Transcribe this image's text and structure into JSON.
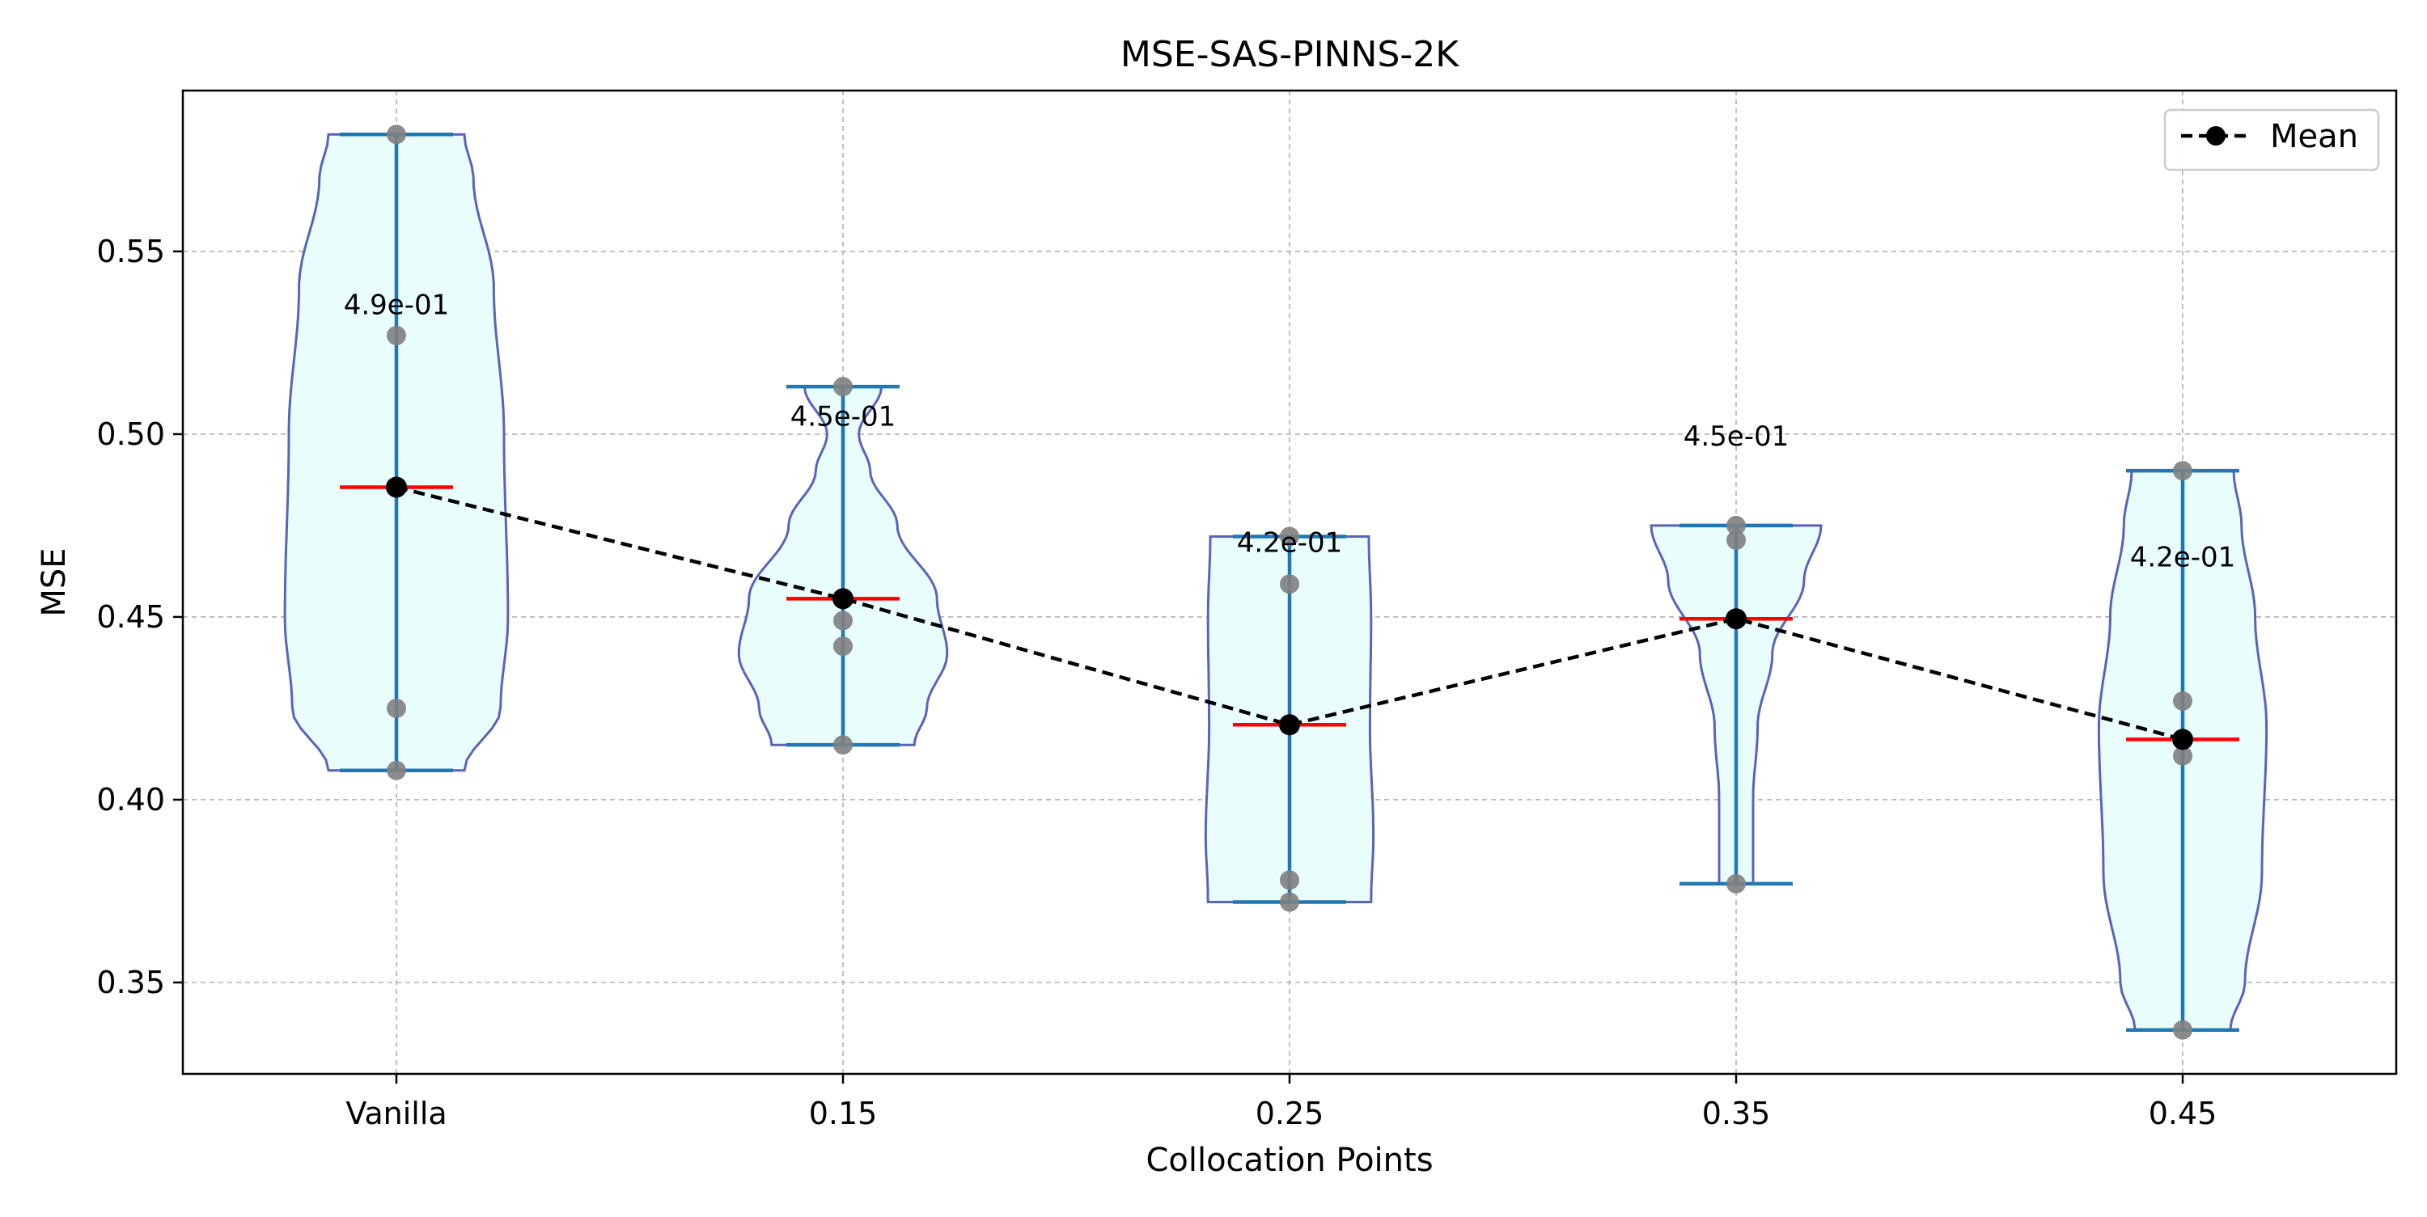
{
  "chart_data": {
    "type": "violin",
    "title": "MSE-SAS-PINNS-2K",
    "xlabel": "Collocation Points",
    "ylabel": "MSE",
    "categories": [
      "Vanilla",
      "0.15",
      "0.25",
      "0.35",
      "0.45"
    ],
    "ylim": [
      0.325,
      0.594
    ],
    "yticks": [
      0.35,
      0.4,
      0.45,
      0.5,
      0.55
    ],
    "ytick_labels": [
      "0.35",
      "0.40",
      "0.45",
      "0.50",
      "0.55"
    ],
    "grid": true,
    "legend": {
      "position": "top-right",
      "entries": [
        "Mean"
      ]
    },
    "colors": {
      "violin_fill": "#e8fdfc",
      "violin_edge": "#5b63b7",
      "whisker": "#1f77b4",
      "median_line": "#ff0000",
      "points": "#808080",
      "mean": "#000000",
      "grid": "#b0b0b0"
    },
    "groups": [
      {
        "category": "Vanilla",
        "min": 0.408,
        "max": 0.582,
        "mean": 0.4855,
        "mean_label": "4.9e-01",
        "points": [
          0.582,
          0.527,
          0.425,
          0.408
        ],
        "shape": [
          [
            0.408,
            0.6
          ],
          [
            0.425,
            0.92
          ],
          [
            0.45,
            0.985
          ],
          [
            0.5,
            0.95
          ],
          [
            0.54,
            0.86
          ],
          [
            0.57,
            0.68
          ],
          [
            0.582,
            0.6
          ]
        ]
      },
      {
        "category": "0.15",
        "min": 0.415,
        "max": 0.513,
        "mean": 0.455,
        "mean_label": "4.5e-01",
        "points": [
          0.513,
          0.449,
          0.442,
          0.415
        ],
        "shape": [
          [
            0.415,
            0.63
          ],
          [
            0.425,
            0.74
          ],
          [
            0.44,
            0.92
          ],
          [
            0.455,
            0.83
          ],
          [
            0.475,
            0.48
          ],
          [
            0.49,
            0.24
          ],
          [
            0.5,
            0.14
          ],
          [
            0.513,
            0.34
          ]
        ]
      },
      {
        "category": "0.25",
        "min": 0.372,
        "max": 0.472,
        "mean": 0.4205,
        "mean_label": "4.2e-01",
        "points": [
          0.472,
          0.459,
          0.378,
          0.372
        ],
        "shape": [
          [
            0.372,
            0.72
          ],
          [
            0.39,
            0.74
          ],
          [
            0.42,
            0.71
          ],
          [
            0.45,
            0.72
          ],
          [
            0.472,
            0.7
          ]
        ]
      },
      {
        "category": "0.35",
        "min": 0.377,
        "max": 0.475,
        "mean": 0.4495,
        "mean_label": "4.5e-01",
        "points": [
          0.475,
          0.471,
          0.377
        ],
        "shape": [
          [
            0.377,
            0.15
          ],
          [
            0.4,
            0.15
          ],
          [
            0.42,
            0.19
          ],
          [
            0.44,
            0.32
          ],
          [
            0.46,
            0.6
          ],
          [
            0.475,
            0.75
          ]
        ]
      },
      {
        "category": "0.45",
        "min": 0.337,
        "max": 0.49,
        "mean": 0.4165,
        "mean_label": "4.2e-01",
        "points": [
          0.49,
          0.427,
          0.412,
          0.337
        ],
        "shape": [
          [
            0.337,
            0.42
          ],
          [
            0.35,
            0.55
          ],
          [
            0.38,
            0.7
          ],
          [
            0.42,
            0.74
          ],
          [
            0.45,
            0.64
          ],
          [
            0.475,
            0.52
          ],
          [
            0.49,
            0.45
          ]
        ]
      }
    ]
  }
}
